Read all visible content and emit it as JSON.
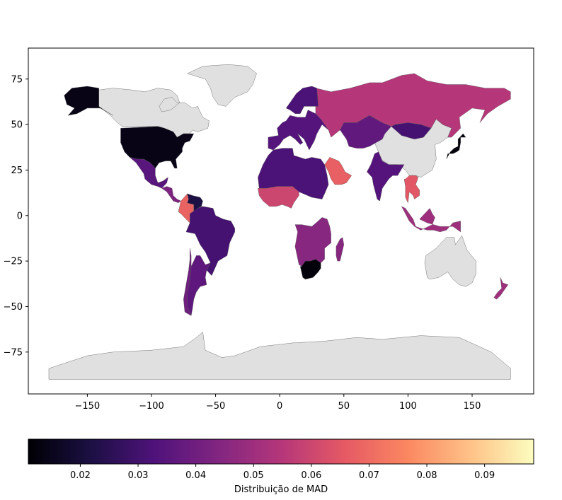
{
  "map": {
    "xticks": [
      -150,
      -100,
      -50,
      0,
      50,
      100,
      150
    ],
    "yticks": [
      75,
      50,
      25,
      0,
      -25,
      -50,
      -75
    ],
    "xlim": [
      -196,
      198
    ],
    "ylim": [
      -98,
      92
    ],
    "grid": false,
    "land_no_data_color": "#e0e0e0",
    "border_color": "#555555",
    "regions": [
      {
        "name": "Canada / Arctic (no data)",
        "value": null
      },
      {
        "name": "Greenland (no data)",
        "value": null
      },
      {
        "name": "Antarctica (no data)",
        "value": null
      },
      {
        "name": "China (no data)",
        "value": null
      },
      {
        "name": "Australia (no data)",
        "value": null
      },
      {
        "name": "Alaska",
        "value": 0.014
      },
      {
        "name": "United States",
        "value": 0.014
      },
      {
        "name": "Mexico",
        "value": 0.035
      },
      {
        "name": "Central America",
        "value": 0.043
      },
      {
        "name": "Colombia",
        "value": 0.068
      },
      {
        "name": "Venezuela",
        "value": 0.022
      },
      {
        "name": "Brazil",
        "value": 0.031
      },
      {
        "name": "Argentina",
        "value": 0.036
      },
      {
        "name": "Chile",
        "value": 0.04
      },
      {
        "name": "Russia",
        "value": 0.055
      },
      {
        "name": "Europe",
        "value": 0.034
      },
      {
        "name": "Scandinavia",
        "value": 0.032
      },
      {
        "name": "North Africa",
        "value": 0.032
      },
      {
        "name": "West Africa",
        "value": 0.06
      },
      {
        "name": "Saudi Arabia",
        "value": 0.067
      },
      {
        "name": "Kazakhstan / Central Asia",
        "value": 0.037
      },
      {
        "name": "Mongolia",
        "value": 0.031
      },
      {
        "name": "India",
        "value": 0.034
      },
      {
        "name": "Japan",
        "value": 0.012
      },
      {
        "name": "Indochina",
        "value": 0.065
      },
      {
        "name": "Indonesia",
        "value": 0.05
      },
      {
        "name": "Southern Africa",
        "value": 0.045
      },
      {
        "name": "South Africa",
        "value": 0.012
      },
      {
        "name": "Madagascar",
        "value": 0.045
      },
      {
        "name": "New Zealand",
        "value": 0.05
      }
    ]
  },
  "colorbar": {
    "label": "Distribuição de MAD",
    "min": 0.011,
    "max": 0.0985,
    "ticks": [
      "0.02",
      "0.03",
      "0.04",
      "0.05",
      "0.06",
      "0.07",
      "0.08",
      "0.09"
    ],
    "colormap": "magma",
    "stops": [
      "#000004",
      "#1c1044",
      "#4f127b",
      "#812581",
      "#b5367a",
      "#e55964",
      "#fb8761",
      "#fec287",
      "#fcfdbf"
    ]
  }
}
